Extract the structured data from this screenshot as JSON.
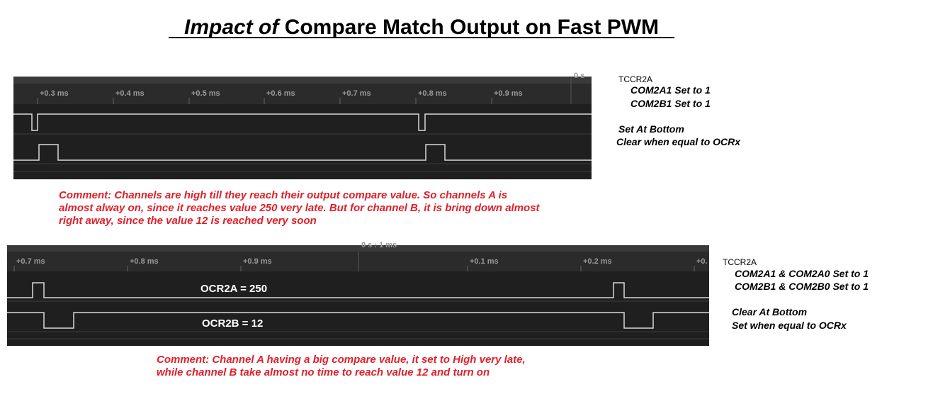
{
  "title": {
    "emphasis": "Impact of",
    "rest": "Compare Match Output on Fast PWM"
  },
  "panels": [
    {
      "marker": "0 s",
      "time_labels": [
        "+0.3 ms",
        "+0.4 ms",
        "+0.5 ms",
        "+0.6 ms",
        "+0.7 ms",
        "+0.8 ms",
        "+0.9 ms"
      ],
      "channel_labels": [],
      "register": "TCCR2A",
      "settings": [
        "COM2A1  Set to 1",
        "COM2B1  Set to 1"
      ],
      "modes": [
        "Set  At Bottom",
        "Clear when equal to OCRx"
      ],
      "comment": [
        "Comment: Channels are high till they reach their output compare value. So channels A is",
        "almost alway on, since it reaches value 250 very late. But for channel B, it is bring down almost",
        "right away, since the value 12 is reached very soon"
      ]
    },
    {
      "marker": "0 s : 1 ms",
      "time_labels": [
        "+0.7 ms",
        "+0.8 ms",
        "+0.9 ms",
        "+0.1 ms",
        "+0.2 ms",
        "+0."
      ],
      "channel_labels": [
        "OCR2A = 250",
        "OCR2B = 12"
      ],
      "register": "TCCR2A",
      "settings": [
        "COM2A1 & COM2A0 Set to 1",
        "COM2B1 & COM2B0 Set to 1"
      ],
      "modes": [
        "Clear At Bottom",
        "Set when equal to OCRx"
      ],
      "comment": [
        "Comment: Channel A having a big compare value, it set to High very late,",
        "while channel B take almost no time to reach value 12 and turn on"
      ]
    }
  ]
}
